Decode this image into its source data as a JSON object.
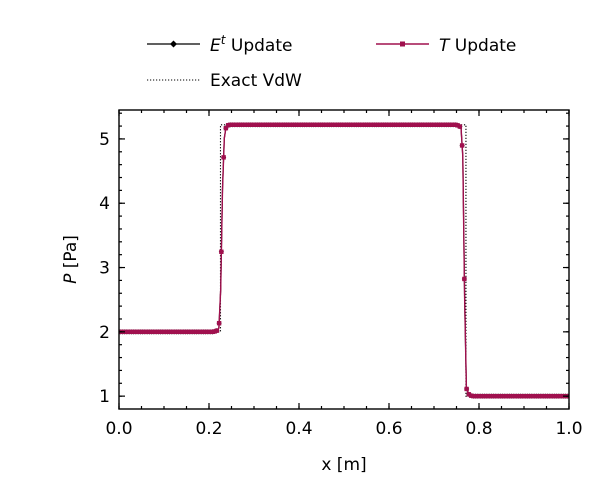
{
  "chart_data": {
    "type": "line",
    "title": "",
    "xlabel": "x [m]",
    "ylabel": "P [Pa]",
    "ylabel_var": "P",
    "ylabel_unit": " [Pa]",
    "xlim": [
      0.0,
      1.0
    ],
    "ylim": [
      0.8,
      5.45
    ],
    "x_ticks": [
      0.0,
      0.2,
      0.4,
      0.6,
      0.8,
      1.0
    ],
    "x_tick_labels": [
      "0.0",
      "0.2",
      "0.4",
      "0.6",
      "0.8",
      "1.0"
    ],
    "y_ticks": [
      1,
      2,
      3,
      4,
      5
    ],
    "y_tick_labels": [
      "1",
      "2",
      "3",
      "4",
      "5"
    ],
    "grid": false,
    "legend_position": "top (outside plot, two columns)",
    "legend": [
      {
        "id": "et",
        "prefix": "E",
        "sup": "t",
        "suffix": " Update",
        "style": "solid line with diamond markers"
      },
      {
        "id": "t",
        "prefix": "T",
        "sup": "",
        "suffix": " Update",
        "style": "solid line with square markers"
      },
      {
        "id": "exact",
        "text": "Exact VdW",
        "style": "dotted line"
      }
    ],
    "series": [
      {
        "id": "exact",
        "name": "Exact VdW",
        "color": "#000000",
        "points": [
          [
            0.0,
            2.0
          ],
          [
            0.2255,
            2.0
          ],
          [
            0.2255,
            5.22
          ],
          [
            0.771,
            5.22
          ],
          [
            0.771,
            1.0
          ],
          [
            1.0,
            1.0
          ]
        ]
      },
      {
        "id": "et",
        "name": "E^t Update",
        "color": "#000000",
        "points": [
          [
            0.0,
            2.0
          ],
          [
            0.21,
            2.0
          ],
          [
            0.218,
            2.02
          ],
          [
            0.222,
            2.06
          ],
          [
            0.226,
            2.66
          ],
          [
            0.23,
            4.22
          ],
          [
            0.234,
            5.01
          ],
          [
            0.238,
            5.19
          ],
          [
            0.244,
            5.22
          ],
          [
            0.75,
            5.22
          ],
          [
            0.756,
            5.2
          ],
          [
            0.76,
            5.18
          ],
          [
            0.764,
            4.73
          ],
          [
            0.768,
            2.55
          ],
          [
            0.772,
            1.12
          ],
          [
            0.778,
            1.02
          ],
          [
            0.785,
            1.0
          ],
          [
            1.0,
            1.0
          ]
        ]
      },
      {
        "id": "t",
        "name": "T Update",
        "color": "#a0104e",
        "points": [
          [
            0.0,
            2.0
          ],
          [
            0.21,
            2.0
          ],
          [
            0.218,
            2.02
          ],
          [
            0.222,
            2.06
          ],
          [
            0.226,
            2.66
          ],
          [
            0.23,
            4.22
          ],
          [
            0.234,
            5.01
          ],
          [
            0.238,
            5.19
          ],
          [
            0.244,
            5.22
          ],
          [
            0.75,
            5.22
          ],
          [
            0.756,
            5.2
          ],
          [
            0.76,
            5.18
          ],
          [
            0.764,
            4.73
          ],
          [
            0.768,
            2.55
          ],
          [
            0.772,
            1.12
          ],
          [
            0.778,
            1.02
          ],
          [
            0.785,
            1.0
          ],
          [
            1.0,
            1.0
          ]
        ]
      }
    ]
  }
}
